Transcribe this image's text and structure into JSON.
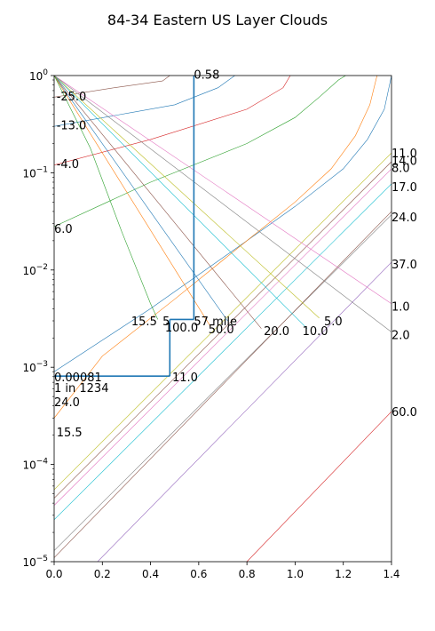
{
  "chart_data": {
    "type": "line",
    "title": "84-34 Eastern US Layer Clouds",
    "xlabel": "",
    "ylabel": "",
    "xlim": [
      0,
      1.4
    ],
    "ylim": [
      1e-05,
      1
    ],
    "yscale": "log",
    "grid": false,
    "legend": "none",
    "x_ticks": [
      {
        "value": 0.0,
        "label": "0.0"
      },
      {
        "value": 0.2,
        "label": "0.2"
      },
      {
        "value": 0.4,
        "label": "0.4"
      },
      {
        "value": 0.6,
        "label": "0.6"
      },
      {
        "value": 0.8,
        "label": "0.8"
      },
      {
        "value": 1.0,
        "label": "1.0"
      },
      {
        "value": 1.2,
        "label": "1.2"
      },
      {
        "value": 1.4,
        "label": "1.4"
      }
    ],
    "y_ticks": [
      {
        "value": 1e-05,
        "base": "10",
        "exp": "−5"
      },
      {
        "value": 0.0001,
        "base": "10",
        "exp": "−4"
      },
      {
        "value": 0.001,
        "base": "10",
        "exp": "−3"
      },
      {
        "value": 0.01,
        "base": "10",
        "exp": "−2"
      },
      {
        "value": 0.1,
        "base": "10",
        "exp": "−1"
      },
      {
        "value": 1,
        "base": "10",
        "exp": "0"
      }
    ],
    "series": [
      {
        "color": "#1f77b4",
        "x": [
          0.0,
          0.4,
          0.8,
          1.0,
          1.2,
          1.3,
          1.37,
          1.4
        ],
        "y": [
          0.0009,
          0.004,
          0.02,
          0.045,
          0.11,
          0.22,
          0.45,
          1.0
        ]
      },
      {
        "color": "#ff7f0e",
        "x": [
          0.0,
          0.2,
          0.5,
          0.8,
          1.0,
          1.15,
          1.25,
          1.31,
          1.34
        ],
        "y": [
          0.0003,
          0.0013,
          0.005,
          0.02,
          0.05,
          0.11,
          0.24,
          0.5,
          1.0
        ]
      },
      {
        "color": "#bcbd22",
        "x": [
          0.0,
          1.4
        ],
        "y": [
          5.5e-05,
          0.16
        ]
      },
      {
        "color": "#8c564b",
        "x": [
          0.0,
          1.4
        ],
        "y": [
          4.5e-05,
          0.13
        ]
      },
      {
        "color": "#e377c2",
        "x": [
          0.0,
          1.4
        ],
        "y": [
          3.8e-05,
          0.11
        ]
      },
      {
        "color": "#17becf",
        "x": [
          0.0,
          1.4
        ],
        "y": [
          2.7e-05,
          0.077
        ]
      },
      {
        "color": "#7f7f7f",
        "x": [
          0.0,
          1.4
        ],
        "y": [
          1.3e-05,
          0.037
        ]
      },
      {
        "color": "#8c564b",
        "x": [
          0.0,
          1.4
        ],
        "y": [
          1.1e-05,
          0.04
        ]
      },
      {
        "color": "#9467bd",
        "x": [
          0.18,
          1.4
        ],
        "y": [
          1e-05,
          0.012
        ]
      },
      {
        "color": "#d62728",
        "x": [
          0.8,
          1.4
        ],
        "y": [
          1e-05,
          0.00035
        ]
      },
      {
        "color": "#2ca02c",
        "x": [
          0.0,
          0.4,
          0.8,
          1.0,
          1.1,
          1.18,
          1.21
        ],
        "y": [
          0.028,
          0.08,
          0.2,
          0.37,
          0.6,
          0.9,
          1.0
        ]
      },
      {
        "color": "#d62728",
        "x": [
          0.0,
          0.4,
          0.8,
          0.95,
          0.98
        ],
        "y": [
          0.12,
          0.22,
          0.45,
          0.75,
          1.0
        ]
      },
      {
        "color": "#1f77b4",
        "x": [
          0.0,
          0.5,
          0.68,
          0.75
        ],
        "y": [
          0.3,
          0.5,
          0.75,
          1.0
        ]
      },
      {
        "color": "#8c564b",
        "x": [
          0.0,
          0.25,
          0.45,
          0.48
        ],
        "y": [
          0.6,
          0.75,
          0.88,
          1.0
        ]
      },
      {
        "color": "#e377c2",
        "x": [
          0.0,
          1.4
        ],
        "y": [
          1.0,
          0.0045
        ]
      },
      {
        "color": "#7f7f7f",
        "x": [
          0.0,
          1.4
        ],
        "y": [
          1.0,
          0.0023
        ]
      },
      {
        "color": "#bcbd22",
        "x": [
          0.0,
          1.1
        ],
        "y": [
          1.0,
          0.0032
        ]
      },
      {
        "color": "#17becf",
        "x": [
          0.0,
          1.05
        ],
        "y": [
          1.0,
          0.0025
        ]
      },
      {
        "color": "#8c564b",
        "x": [
          0.0,
          0.86
        ],
        "y": [
          1.0,
          0.0025
        ]
      },
      {
        "color": "#1f77b4",
        "x": [
          0.0,
          0.72
        ],
        "y": [
          1.0,
          0.003
        ]
      },
      {
        "color": "#ff7f0e",
        "x": [
          0.0,
          0.65
        ],
        "y": [
          1.0,
          0.0026
        ]
      },
      {
        "color": "#2ca02c",
        "x": [
          0.0,
          0.15,
          0.28,
          0.4,
          0.43
        ],
        "y": [
          1.0,
          0.18,
          0.025,
          0.0045,
          0.0031
        ]
      }
    ],
    "annotation_lines": [
      {
        "color": "#1f77b4",
        "x": [
          0.0,
          0.48
        ],
        "y": [
          0.00081,
          0.00081
        ]
      },
      {
        "color": "#1f77b4",
        "x": [
          0.48,
          0.48
        ],
        "y": [
          0.00081,
          0.0031
        ]
      },
      {
        "color": "#1f77b4",
        "x": [
          0.48,
          0.58
        ],
        "y": [
          0.0031,
          0.0031
        ]
      },
      {
        "color": "#1f77b4",
        "x": [
          0.58,
          0.58
        ],
        "y": [
          0.0031,
          1.0
        ]
      }
    ],
    "annotations": [
      {
        "text": "0.58",
        "x": 0.58,
        "y": 1.0
      },
      {
        "text": "-25.0",
        "x": 0.01,
        "y": 0.6
      },
      {
        "text": "-13.0",
        "x": 0.01,
        "y": 0.3
      },
      {
        "text": "-4.0",
        "x": 0.01,
        "y": 0.12
      },
      {
        "text": "6.0",
        "x": 0.0,
        "y": 0.026
      },
      {
        "text": "11.0",
        "x": 1.4,
        "y": 0.155
      },
      {
        "text": "14.0",
        "x": 1.4,
        "y": 0.13
      },
      {
        "text": "8.0",
        "x": 1.4,
        "y": 0.11
      },
      {
        "text": "17.0",
        "x": 1.4,
        "y": 0.07
      },
      {
        "text": "24.0",
        "x": 1.4,
        "y": 0.034
      },
      {
        "text": "37.0",
        "x": 1.4,
        "y": 0.0112
      },
      {
        "text": "1.0",
        "x": 1.4,
        "y": 0.0041
      },
      {
        "text": "2.0",
        "x": 1.4,
        "y": 0.0021
      },
      {
        "text": "60.0",
        "x": 1.4,
        "y": 0.00034
      },
      {
        "text": "5.0",
        "x": 1.12,
        "y": 0.0029
      },
      {
        "text": "10.0",
        "x": 1.03,
        "y": 0.0023
      },
      {
        "text": "20.0",
        "x": 0.87,
        "y": 0.0023
      },
      {
        "text": "50.0",
        "x": 0.64,
        "y": 0.0024
      },
      {
        "text": "100.0",
        "x": 0.46,
        "y": 0.0025
      },
      {
        "text": "15.5",
        "x": 0.32,
        "y": 0.0029
      },
      {
        "text": "5",
        "x": 0.45,
        "y": 0.0029
      },
      {
        "text": "57 mile",
        "x": 0.58,
        "y": 0.0029
      },
      {
        "text": "0.00081",
        "x": 0.0,
        "y": 0.00077
      },
      {
        "text": "11.0",
        "x": 0.49,
        "y": 0.00077
      },
      {
        "text": "1 in 1234",
        "x": 0.0,
        "y": 0.0006
      },
      {
        "text": "24.0",
        "x": 0.0,
        "y": 0.00043
      },
      {
        "text": "15.5",
        "x": 0.01,
        "y": 0.00021
      }
    ]
  }
}
